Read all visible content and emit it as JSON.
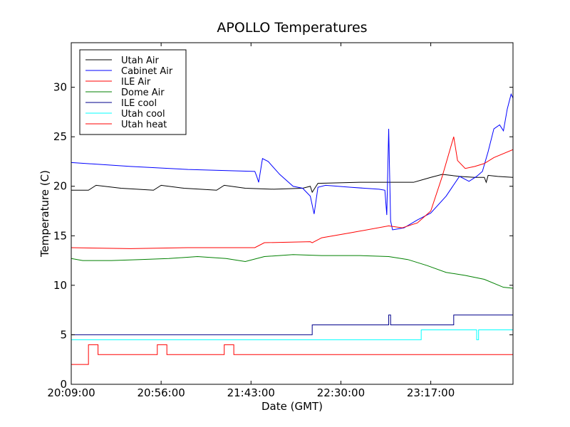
{
  "chart_data": {
    "type": "line",
    "title": "APOLLO Temperatures",
    "xlabel": "Date (GMT)",
    "ylabel": "Temperature (C)",
    "xlim": [
      "20:09:00",
      "00:00:00"
    ],
    "ylim": [
      0,
      34.5
    ],
    "grid": false,
    "legend": "top-left",
    "x_ticks": [
      "20:09:00",
      "20:56:00",
      "21:43:00",
      "22:30:00",
      "23:17:00"
    ],
    "y_ticks": [
      0,
      5,
      10,
      15,
      20,
      25,
      30
    ],
    "series": [
      {
        "name": "Utah Air",
        "color": "#000000",
        "points": [
          [
            "20:09:00",
            19.6
          ],
          [
            "20:18:00",
            19.6
          ],
          [
            "20:22:00",
            20.1
          ],
          [
            "20:35:00",
            19.8
          ],
          [
            "20:52:00",
            19.6
          ],
          [
            "20:56:00",
            20.1
          ],
          [
            "21:08:00",
            19.8
          ],
          [
            "21:25:00",
            19.6
          ],
          [
            "21:29:00",
            20.1
          ],
          [
            "21:40:00",
            19.8
          ],
          [
            "21:55:00",
            19.7
          ],
          [
            "22:10:00",
            19.8
          ],
          [
            "22:14:00",
            20.0
          ],
          [
            "22:15:00",
            19.4
          ],
          [
            "22:18:00",
            20.3
          ],
          [
            "22:40:00",
            20.4
          ],
          [
            "23:08:00",
            20.4
          ],
          [
            "23:17:00",
            20.9
          ],
          [
            "23:23:00",
            21.2
          ],
          [
            "23:32:00",
            21.0
          ],
          [
            "23:40:00",
            20.9
          ],
          [
            "23:45:00",
            20.9
          ],
          [
            "23:46:00",
            20.4
          ],
          [
            "23:47:00",
            21.1
          ],
          [
            "23:52:00",
            21.0
          ],
          [
            "00:00:00",
            20.9
          ]
        ]
      },
      {
        "name": "Cabinet Air",
        "color": "#0000ff",
        "points": [
          [
            "20:09:00",
            22.4
          ],
          [
            "20:40:00",
            22.0
          ],
          [
            "21:10:00",
            21.7
          ],
          [
            "21:45:00",
            21.5
          ],
          [
            "21:46:00",
            21.0
          ],
          [
            "21:47:00",
            20.4
          ],
          [
            "21:49:00",
            22.8
          ],
          [
            "21:52:00",
            22.5
          ],
          [
            "21:58:00",
            21.2
          ],
          [
            "22:05:00",
            20.0
          ],
          [
            "22:10:00",
            19.8
          ],
          [
            "22:14:00",
            19.0
          ],
          [
            "22:16:00",
            17.2
          ],
          [
            "22:18:00",
            19.9
          ],
          [
            "22:22:00",
            20.1
          ],
          [
            "22:35:00",
            19.9
          ],
          [
            "22:50:00",
            19.7
          ],
          [
            "22:53:00",
            19.6
          ],
          [
            "22:54:00",
            17.1
          ],
          [
            "22:55:00",
            25.8
          ],
          [
            "22:56:00",
            16.5
          ],
          [
            "22:57:00",
            15.6
          ],
          [
            "23:03:00",
            15.8
          ],
          [
            "23:10:00",
            16.6
          ],
          [
            "23:17:00",
            17.3
          ],
          [
            "23:25:00",
            19.0
          ],
          [
            "23:32:00",
            21.0
          ],
          [
            "23:37:00",
            20.5
          ],
          [
            "23:41:00",
            21.0
          ],
          [
            "23:44:00",
            21.5
          ],
          [
            "23:47:00",
            23.5
          ],
          [
            "23:50:00",
            25.8
          ],
          [
            "23:53:00",
            26.2
          ],
          [
            "23:55:00",
            25.6
          ],
          [
            "23:57:00",
            27.8
          ],
          [
            "23:59:00",
            29.3
          ],
          [
            "00:00:00",
            28.9
          ]
        ]
      },
      {
        "name": "ILE Air",
        "color": "#ff0000",
        "points": [
          [
            "20:09:00",
            13.8
          ],
          [
            "20:40:00",
            13.7
          ],
          [
            "21:10:00",
            13.8
          ],
          [
            "21:45:00",
            13.8
          ],
          [
            "21:50:00",
            14.3
          ],
          [
            "22:14:00",
            14.4
          ],
          [
            "22:15:00",
            14.3
          ],
          [
            "22:20:00",
            14.8
          ],
          [
            "22:35:00",
            15.3
          ],
          [
            "22:55:00",
            16.0
          ],
          [
            "23:02:00",
            15.8
          ],
          [
            "23:10:00",
            16.3
          ],
          [
            "23:17:00",
            17.5
          ],
          [
            "23:23:00",
            21.0
          ],
          [
            "23:29:00",
            25.0
          ],
          [
            "23:31:00",
            22.6
          ],
          [
            "23:35:00",
            21.8
          ],
          [
            "23:40:00",
            22.0
          ],
          [
            "23:45:00",
            22.3
          ],
          [
            "23:50:00",
            22.9
          ],
          [
            "00:00:00",
            23.7
          ]
        ]
      },
      {
        "name": "Dome Air",
        "color": "#008000",
        "points": [
          [
            "20:09:00",
            12.7
          ],
          [
            "20:15:00",
            12.5
          ],
          [
            "20:30:00",
            12.5
          ],
          [
            "20:45:00",
            12.6
          ],
          [
            "21:00:00",
            12.7
          ],
          [
            "21:15:00",
            12.9
          ],
          [
            "21:30:00",
            12.7
          ],
          [
            "21:40:00",
            12.4
          ],
          [
            "21:50:00",
            12.9
          ],
          [
            "22:05:00",
            13.1
          ],
          [
            "22:20:00",
            13.0
          ],
          [
            "22:40:00",
            13.0
          ],
          [
            "22:55:00",
            12.9
          ],
          [
            "23:05:00",
            12.6
          ],
          [
            "23:15:00",
            12.0
          ],
          [
            "23:25:00",
            11.3
          ],
          [
            "23:35:00",
            11.0
          ],
          [
            "23:45:00",
            10.6
          ],
          [
            "23:55:00",
            9.8
          ],
          [
            "00:00:00",
            9.7
          ]
        ]
      },
      {
        "name": "ILE cool",
        "color": "#00008b",
        "points": [
          [
            "20:09:00",
            5.0
          ],
          [
            "22:15:00",
            5.0
          ],
          [
            "22:15:00",
            6.0
          ],
          [
            "22:55:00",
            6.0
          ],
          [
            "22:55:00",
            7.0
          ],
          [
            "22:56:00",
            7.0
          ],
          [
            "22:56:00",
            6.0
          ],
          [
            "23:29:00",
            6.0
          ],
          [
            "23:29:00",
            7.0
          ],
          [
            "00:00:00",
            7.0
          ]
        ]
      },
      {
        "name": "Utah cool",
        "color": "#00ffff",
        "points": [
          [
            "20:09:00",
            4.5
          ],
          [
            "23:12:00",
            4.5
          ],
          [
            "23:12:00",
            5.5
          ],
          [
            "23:41:00",
            5.5
          ],
          [
            "23:41:00",
            4.5
          ],
          [
            "23:42:00",
            4.5
          ],
          [
            "23:42:00",
            5.5
          ],
          [
            "00:00:00",
            5.5
          ]
        ]
      },
      {
        "name": "Utah heat",
        "color": "#ff0000",
        "points": [
          [
            "20:09:00",
            2.0
          ],
          [
            "20:18:00",
            2.0
          ],
          [
            "20:18:00",
            4.0
          ],
          [
            "20:23:00",
            4.0
          ],
          [
            "20:23:00",
            3.0
          ],
          [
            "20:54:00",
            3.0
          ],
          [
            "20:54:00",
            4.0
          ],
          [
            "20:59:00",
            4.0
          ],
          [
            "20:59:00",
            3.0
          ],
          [
            "21:29:00",
            3.0
          ],
          [
            "21:29:00",
            4.0
          ],
          [
            "21:34:00",
            4.0
          ],
          [
            "21:34:00",
            3.0
          ],
          [
            "00:00:00",
            3.0
          ]
        ]
      }
    ]
  }
}
